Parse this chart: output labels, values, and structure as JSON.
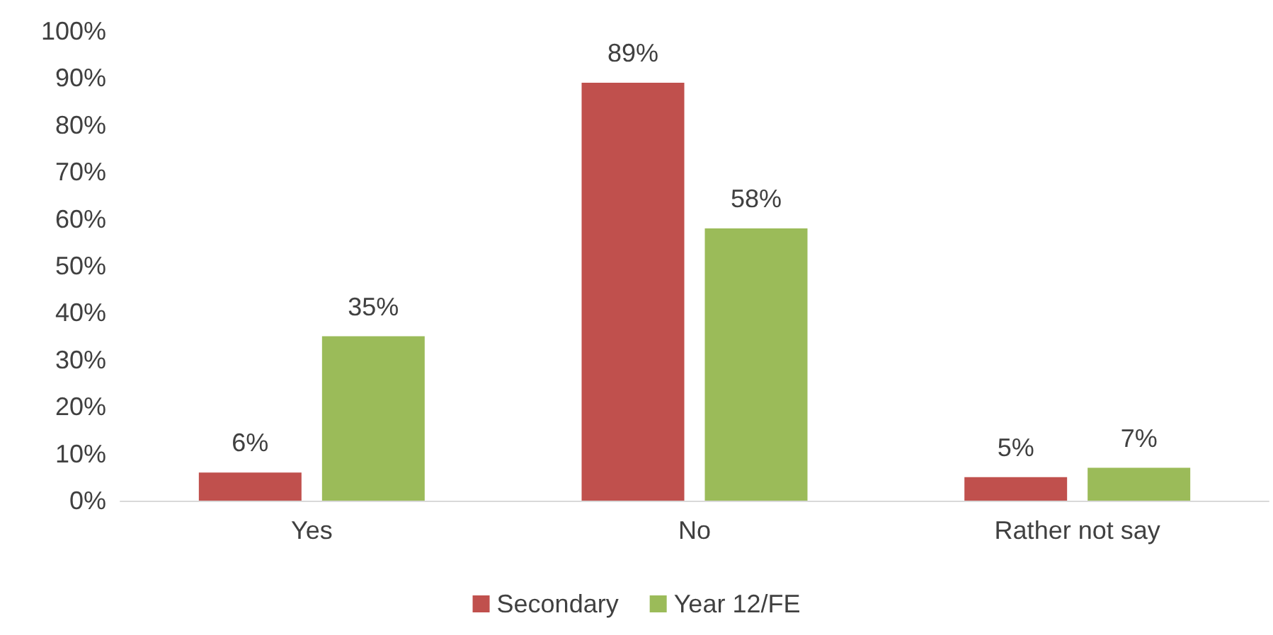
{
  "chart_data": {
    "type": "bar",
    "categories": [
      "Yes",
      "No",
      "Rather not say"
    ],
    "series": [
      {
        "name": "Secondary",
        "color": "#c0504d",
        "values": [
          6,
          89,
          5
        ],
        "value_labels": [
          "6%",
          "89%",
          "5%"
        ]
      },
      {
        "name": "Year 12/FE",
        "color": "#9bbb59",
        "values": [
          35,
          58,
          7
        ],
        "value_labels": [
          "35%",
          "58%",
          "7%"
        ]
      }
    ],
    "ylim": [
      0,
      100
    ],
    "yticks": [
      {
        "value": 0,
        "label": "0%"
      },
      {
        "value": 10,
        "label": "10%"
      },
      {
        "value": 20,
        "label": "20%"
      },
      {
        "value": 30,
        "label": "30%"
      },
      {
        "value": 40,
        "label": "40%"
      },
      {
        "value": 50,
        "label": "50%"
      },
      {
        "value": 60,
        "label": "60%"
      },
      {
        "value": 70,
        "label": "70%"
      },
      {
        "value": 80,
        "label": "80%"
      },
      {
        "value": 90,
        "label": "90%"
      },
      {
        "value": 100,
        "label": "100%"
      }
    ],
    "grid": false,
    "legend": "bottom"
  }
}
